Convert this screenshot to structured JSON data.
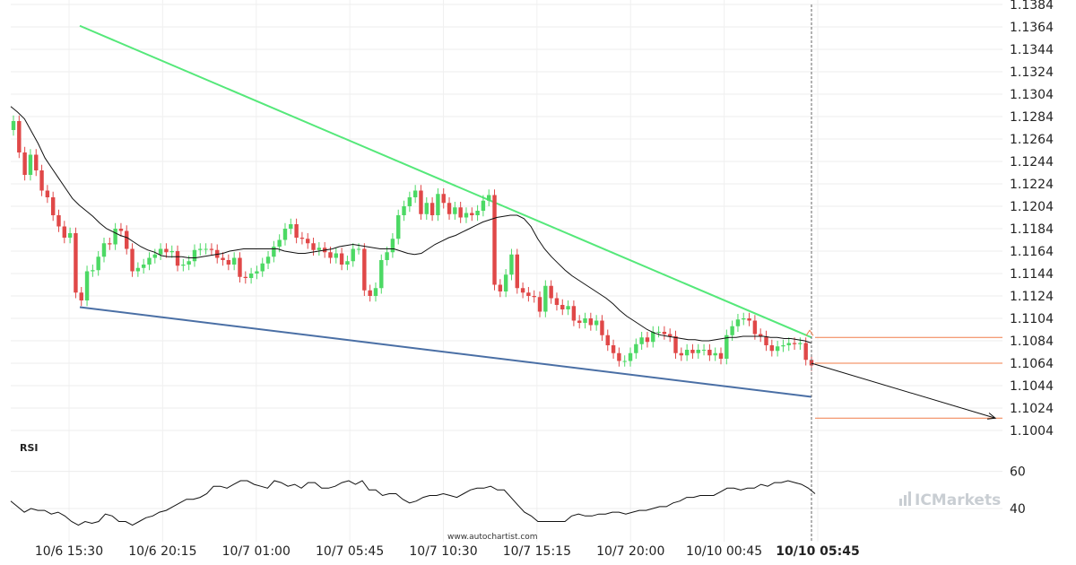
{
  "chart_data": {
    "type": "candlestick",
    "price_axis": {
      "ticks": [
        "1.1384",
        "1.1364",
        "1.1344",
        "1.1324",
        "1.1304",
        "1.1284",
        "1.1264",
        "1.1244",
        "1.1224",
        "1.1204",
        "1.1184",
        "1.1164",
        "1.1144",
        "1.1124",
        "1.1104",
        "1.1084",
        "1.1064",
        "1.1044",
        "1.1024",
        "1.1004"
      ],
      "range": [
        1.0996,
        1.1388
      ]
    },
    "time_axis": {
      "ticks": [
        "10/6 15:30",
        "10/6 20:15",
        "10/7 01:00",
        "10/7 05:45",
        "10/7 10:30",
        "10/7 15:15",
        "10/7 20:00",
        "10/10 00:45",
        "10/10 05:45"
      ],
      "current_label": "10/10 05:45"
    },
    "candles_close": [
      1.128,
      1.1252,
      1.1232,
      1.125,
      1.1236,
      1.1218,
      1.1212,
      1.1196,
      1.1186,
      1.1176,
      1.118,
      1.1127,
      1.112,
      1.1146,
      1.1147,
      1.1159,
      1.1171,
      1.117,
      1.1184,
      1.1182,
      1.1166,
      1.1146,
      1.1149,
      1.1152,
      1.1158,
      1.1161,
      1.1166,
      1.1163,
      1.1164,
      1.1151,
      1.1152,
      1.1155,
      1.1165,
      1.1166,
      1.1166,
      1.1165,
      1.1158,
      1.1156,
      1.1152,
      1.1158,
      1.1141,
      1.114,
      1.1144,
      1.1146,
      1.1153,
      1.1159,
      1.1168,
      1.1174,
      1.1184,
      1.1188,
      1.1176,
      1.1175,
      1.1171,
      1.1165,
      1.1167,
      1.1163,
      1.1158,
      1.1162,
      1.1152,
      1.1155,
      1.1166,
      1.1166,
      1.1129,
      1.1124,
      1.1131,
      1.1156,
      1.1163,
      1.1175,
      1.1196,
      1.1204,
      1.1212,
      1.1218,
      1.1197,
      1.1207,
      1.1196,
      1.1215,
      1.1207,
      1.1197,
      1.1203,
      1.1194,
      1.1198,
      1.1196,
      1.12,
      1.1209,
      1.1214,
      1.1134,
      1.1128,
      1.1143,
      1.1161,
      1.1131,
      1.1127,
      1.1124,
      1.1123,
      1.111,
      1.1133,
      1.1122,
      1.1116,
      1.1112,
      1.1115,
      1.1102,
      1.11,
      1.1104,
      1.1098,
      1.1102,
      1.1089,
      1.108,
      1.1073,
      1.1066,
      1.1066,
      1.1073,
      1.1081,
      1.1087,
      1.1083,
      1.1092,
      1.1092,
      1.109,
      1.1088,
      1.1073,
      1.1071,
      1.1076,
      1.1073,
      1.1076,
      1.1076,
      1.1071,
      1.1073,
      1.1068,
      1.1089,
      1.1097,
      1.1103,
      1.1104,
      1.1102,
      1.109,
      1.1088,
      1.108,
      1.1075,
      1.1079,
      1.108,
      1.1082,
      1.1081,
      1.1082,
      1.1067,
      1.1062
    ],
    "moving_average": [
      1.1293,
      1.1288,
      1.1282,
      1.1271,
      1.126,
      1.1247,
      1.1238,
      1.1229,
      1.122,
      1.1211,
      1.1205,
      1.12,
      1.1195,
      1.1189,
      1.1184,
      1.1181,
      1.1178,
      1.1176,
      1.1172,
      1.1168,
      1.1165,
      1.1163,
      1.116,
      1.1159,
      1.1159,
      1.1159,
      1.1158,
      1.1158,
      1.1159,
      1.116,
      1.1161,
      1.1162,
      1.1164,
      1.1165,
      1.1166,
      1.1166,
      1.1166,
      1.1166,
      1.1166,
      1.1166,
      1.1164,
      1.1163,
      1.1162,
      1.1162,
      1.1163,
      1.1164,
      1.1165,
      1.1166,
      1.1168,
      1.1169,
      1.117,
      1.1169,
      1.1168,
      1.1167,
      1.1166,
      1.1166,
      1.1166,
      1.1164,
      1.1162,
      1.1161,
      1.1162,
      1.1166,
      1.117,
      1.1173,
      1.1176,
      1.1178,
      1.1181,
      1.1184,
      1.1187,
      1.119,
      1.1192,
      1.1194,
      1.1195,
      1.1196,
      1.1196,
      1.1193,
      1.1186,
      1.1175,
      1.1166,
      1.1159,
      1.1153,
      1.1147,
      1.1142,
      1.1138,
      1.1134,
      1.113,
      1.1126,
      1.1122,
      1.1117,
      1.1111,
      1.1106,
      1.1102,
      1.1098,
      1.1094,
      1.1091,
      1.1089,
      1.1088,
      1.1087,
      1.1086,
      1.1085,
      1.1085,
      1.1084,
      1.1084,
      1.1085,
      1.1086,
      1.1087,
      1.1087,
      1.1088,
      1.1088,
      1.1088,
      1.1088,
      1.1087,
      1.1087,
      1.1086,
      1.1086,
      1.1085,
      1.1084,
      1.1082
    ],
    "rsi": {
      "label": "RSI",
      "ticks": [
        "60",
        "40"
      ],
      "range": [
        25,
        70
      ],
      "values": [
        44,
        41,
        38,
        40,
        39,
        39,
        37,
        38,
        36,
        33,
        31,
        33,
        32,
        33,
        37,
        36,
        33,
        33,
        31,
        33,
        35,
        36,
        38,
        39,
        41,
        43,
        45,
        45,
        46,
        48,
        52,
        52,
        51,
        53,
        55,
        55,
        53,
        52,
        51,
        55,
        54,
        52,
        53,
        51,
        54,
        54,
        51,
        51,
        52,
        54,
        55,
        53,
        55,
        50,
        50,
        47,
        48,
        48,
        45,
        43,
        44,
        46,
        47,
        47,
        48,
        47,
        46,
        48,
        50,
        51,
        51,
        52,
        50,
        50,
        46,
        42,
        38,
        36,
        33,
        33,
        33,
        33,
        33,
        36,
        37,
        36,
        36,
        37,
        37,
        38,
        38,
        37,
        38,
        39,
        39,
        40,
        41,
        41,
        43,
        44,
        46,
        46,
        47,
        47,
        47,
        49,
        51,
        51,
        50,
        51,
        51,
        53,
        52,
        54,
        54,
        55,
        54,
        53,
        51,
        48
      ]
    },
    "trendlines": [
      {
        "role": "resistance",
        "color": "#55e87a",
        "from_time": "10/6 15:30",
        "from_price": 1.1365,
        "to_time": "10/10 05:45",
        "to_price": 1.1087
      },
      {
        "role": "support",
        "color": "#4a6fa5",
        "from_time": "10/6 15:30",
        "from_price": 1.1114,
        "to_time": "10/10 05:45",
        "to_price": 1.1034
      }
    ],
    "levels": [
      {
        "price": 1.1087,
        "color": "#f07d4a"
      },
      {
        "price": 1.1064,
        "color": "#f07d4a"
      },
      {
        "price": 1.1015,
        "color": "#f07d4a"
      }
    ],
    "forecast": {
      "from_price": 1.1064,
      "to_price": 1.1015
    },
    "colors": {
      "up": "#4cd964",
      "down": "#e04848",
      "ma": "#111111",
      "rsi": "#111111"
    },
    "grid": true
  },
  "footer": {
    "watermark": "www.autochartist.com",
    "brand": "ICMarkets"
  }
}
